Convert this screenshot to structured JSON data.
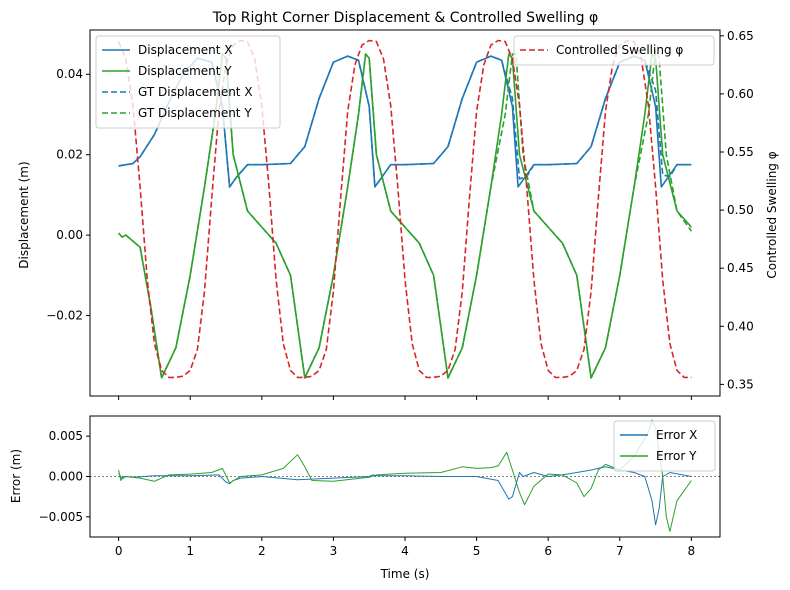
{
  "chart_data": [
    {
      "type": "line",
      "title": "Top Right Corner Displacement & Controlled Swelling φ",
      "xlabel": "",
      "ylabel": "Displacement (m)",
      "ylabel_right": "Controlled Swelling φ",
      "xlim": [
        -0.4,
        8.4
      ],
      "ylim": [
        -0.04,
        0.051
      ],
      "ylim_right": [
        0.34,
        0.655
      ],
      "xticks": [
        0,
        1,
        2,
        3,
        4,
        5,
        6,
        7,
        8
      ],
      "xtick_labels": [
        "",
        "",
        "",
        "",
        "",
        "",
        "",
        "",
        ""
      ],
      "yticks": [
        -0.02,
        0.0,
        0.02,
        0.04
      ],
      "ytick_labels": [
        "−0.02",
        "0.00",
        "0.02",
        "0.04"
      ],
      "yticks_right": [
        0.35,
        0.4,
        0.45,
        0.5,
        0.55,
        0.6,
        0.65
      ],
      "ytick_labels_right": [
        "0.35",
        "0.40",
        "0.45",
        "0.50",
        "0.55",
        "0.60",
        "0.65"
      ],
      "grid": false,
      "legend_left": {
        "placement": "upper-left",
        "entries": [
          "Displacement X",
          "Displacement Y",
          "GT Displacement X",
          "GT Displacement Y"
        ]
      },
      "legend_right": {
        "placement": "upper-right",
        "entries": [
          "Controlled Swelling φ"
        ]
      },
      "series": [
        {
          "name": "Displacement X",
          "axis": "left",
          "color": "#1f77b4",
          "dash": "solid",
          "x": [
            0,
            0.2,
            0.3,
            0.5,
            0.7,
            0.9,
            1.1,
            1.3,
            1.45,
            1.55,
            1.65,
            1.8,
            2.0,
            2.4,
            2.6,
            2.8,
            3.0,
            3.2,
            3.35,
            3.5,
            3.58,
            3.68,
            3.8,
            4.0,
            4.4,
            4.6,
            4.8,
            5.0,
            5.2,
            5.35,
            5.5,
            5.58,
            5.68,
            5.8,
            6.0,
            6.4,
            6.6,
            6.8,
            7.0,
            7.2,
            7.35,
            7.5,
            7.58,
            7.68,
            7.8,
            8.0
          ],
          "y": [
            0.0172,
            0.0178,
            0.0195,
            0.025,
            0.033,
            0.04,
            0.044,
            0.043,
            0.032,
            0.012,
            0.0145,
            0.0175,
            0.0175,
            0.0178,
            0.022,
            0.034,
            0.043,
            0.0445,
            0.0435,
            0.032,
            0.012,
            0.0145,
            0.0175,
            0.0175,
            0.0178,
            0.022,
            0.034,
            0.043,
            0.0445,
            0.0435,
            0.032,
            0.012,
            0.0145,
            0.0175,
            0.0175,
            0.0178,
            0.022,
            0.034,
            0.043,
            0.0445,
            0.0435,
            0.032,
            0.012,
            0.0145,
            0.0175,
            0.0175
          ]
        },
        {
          "name": "Displacement Y",
          "axis": "left",
          "color": "#2ca02c",
          "dash": "solid",
          "x": [
            0,
            0.05,
            0.1,
            0.3,
            0.45,
            0.6,
            0.8,
            1.0,
            1.2,
            1.35,
            1.45,
            1.5,
            1.6,
            1.8,
            2.0,
            2.2,
            2.4,
            2.6,
            2.8,
            3.0,
            3.2,
            3.35,
            3.45,
            3.5,
            3.6,
            3.8,
            4.0,
            4.2,
            4.4,
            4.6,
            4.8,
            5.0,
            5.2,
            5.35,
            5.45,
            5.5,
            5.6,
            5.8,
            6.0,
            6.2,
            6.4,
            6.6,
            6.8,
            7.0,
            7.2,
            7.35,
            7.45,
            7.5,
            7.6,
            7.8,
            8.0
          ],
          "y": [
            0.0005,
            -0.0005,
            0.0,
            -0.003,
            -0.018,
            -0.0355,
            -0.028,
            -0.01,
            0.012,
            0.03,
            0.045,
            0.044,
            0.02,
            0.006,
            0.002,
            -0.002,
            -0.01,
            -0.0355,
            -0.028,
            -0.01,
            0.012,
            0.03,
            0.045,
            0.044,
            0.02,
            0.006,
            0.002,
            -0.002,
            -0.01,
            -0.0355,
            -0.028,
            -0.01,
            0.012,
            0.03,
            0.045,
            0.044,
            0.02,
            0.006,
            0.002,
            -0.002,
            -0.01,
            -0.0355,
            -0.028,
            -0.01,
            0.012,
            0.03,
            0.045,
            0.044,
            0.02,
            0.006,
            0.002
          ]
        },
        {
          "name": "GT Displacement X",
          "axis": "left",
          "color": "#1f77b4",
          "dash": "dashed",
          "x": [
            0,
            0.2,
            0.3,
            0.5,
            0.7,
            0.9,
            1.1,
            1.3,
            1.45,
            1.55,
            1.65,
            1.8,
            2.0,
            2.4,
            2.6,
            2.8,
            3.0,
            3.2,
            3.35,
            3.5,
            3.58,
            3.68,
            3.8,
            4.0,
            4.4,
            4.6,
            4.8,
            5.0,
            5.2,
            5.35,
            5.5,
            5.6,
            5.7,
            5.8,
            6.0,
            6.4,
            6.6,
            6.8,
            7.0,
            7.2,
            7.35,
            7.5,
            7.6,
            7.7,
            7.8,
            8.0
          ],
          "y": [
            0.0172,
            0.0178,
            0.0195,
            0.025,
            0.033,
            0.04,
            0.044,
            0.043,
            0.032,
            0.012,
            0.0145,
            0.0175,
            0.0175,
            0.0178,
            0.022,
            0.034,
            0.043,
            0.0445,
            0.0435,
            0.032,
            0.012,
            0.0145,
            0.0175,
            0.0175,
            0.0178,
            0.022,
            0.034,
            0.043,
            0.0445,
            0.0435,
            0.034,
            0.014,
            0.0145,
            0.0175,
            0.0175,
            0.0178,
            0.022,
            0.034,
            0.043,
            0.0445,
            0.0435,
            0.036,
            0.015,
            0.0145,
            0.0175,
            0.0175
          ]
        },
        {
          "name": "GT Displacement Y",
          "axis": "left",
          "color": "#2ca02c",
          "dash": "dashed",
          "x": [
            0,
            0.05,
            0.1,
            0.3,
            0.45,
            0.6,
            0.8,
            1.0,
            1.2,
            1.35,
            1.45,
            1.5,
            1.6,
            1.8,
            2.0,
            2.2,
            2.4,
            2.6,
            2.8,
            3.0,
            3.2,
            3.35,
            3.45,
            3.5,
            3.6,
            3.8,
            4.0,
            4.2,
            4.4,
            4.6,
            4.8,
            5.0,
            5.2,
            5.4,
            5.5,
            5.55,
            5.65,
            5.8,
            6.0,
            6.2,
            6.4,
            6.6,
            6.8,
            7.0,
            7.2,
            7.4,
            7.5,
            7.55,
            7.65,
            7.8,
            8.0
          ],
          "y": [
            0.0005,
            -0.0005,
            0.0,
            -0.003,
            -0.018,
            -0.0355,
            -0.028,
            -0.01,
            0.012,
            0.03,
            0.045,
            0.044,
            0.02,
            0.006,
            0.002,
            -0.002,
            -0.01,
            -0.0355,
            -0.028,
            -0.01,
            0.012,
            0.03,
            0.045,
            0.044,
            0.02,
            0.006,
            0.002,
            -0.002,
            -0.01,
            -0.0355,
            -0.028,
            -0.01,
            0.012,
            0.03,
            0.045,
            0.045,
            0.02,
            0.006,
            0.002,
            -0.002,
            -0.01,
            -0.0355,
            -0.028,
            -0.01,
            0.012,
            0.03,
            0.046,
            0.044,
            0.02,
            0.006,
            0.001
          ]
        },
        {
          "name": "Controlled Swelling φ",
          "axis": "right",
          "color": "#d62728",
          "dash": "dashed",
          "x": [
            0,
            0.1,
            0.2,
            0.3,
            0.4,
            0.5,
            0.6,
            0.7,
            0.8,
            0.9,
            1.0,
            1.1,
            1.2,
            1.3,
            1.4,
            1.5,
            1.6,
            1.7,
            1.8,
            1.9,
            2.0,
            2.1,
            2.2,
            2.3,
            2.4,
            2.5,
            2.6,
            2.7,
            2.8,
            2.9,
            3.0,
            3.1,
            3.2,
            3.3,
            3.4,
            3.5,
            3.6,
            3.7,
            3.8,
            3.9,
            4.0,
            4.1,
            4.2,
            4.3,
            4.4,
            4.5,
            4.6,
            4.7,
            4.8,
            4.9,
            5.0,
            5.1,
            5.2,
            5.3,
            5.4,
            5.5,
            5.6,
            5.7,
            5.8,
            5.9,
            6.0,
            6.1,
            6.2,
            6.3,
            6.4,
            6.5,
            6.6,
            6.7,
            6.8,
            6.9,
            7.0,
            7.1,
            7.2,
            7.3,
            7.4,
            7.5,
            7.6,
            7.7,
            7.8,
            7.9,
            8.0
          ],
          "y": [
            0.645,
            0.63,
            0.59,
            0.52,
            0.44,
            0.385,
            0.362,
            0.356,
            0.356,
            0.357,
            0.362,
            0.38,
            0.43,
            0.51,
            0.585,
            0.625,
            0.642,
            0.646,
            0.645,
            0.63,
            0.59,
            0.52,
            0.44,
            0.385,
            0.362,
            0.356,
            0.356,
            0.357,
            0.362,
            0.38,
            0.43,
            0.51,
            0.585,
            0.625,
            0.642,
            0.646,
            0.645,
            0.63,
            0.59,
            0.52,
            0.44,
            0.385,
            0.362,
            0.356,
            0.356,
            0.357,
            0.362,
            0.38,
            0.43,
            0.51,
            0.585,
            0.625,
            0.642,
            0.646,
            0.645,
            0.63,
            0.59,
            0.52,
            0.44,
            0.385,
            0.362,
            0.356,
            0.356,
            0.357,
            0.362,
            0.38,
            0.43,
            0.51,
            0.585,
            0.625,
            0.642,
            0.646,
            0.645,
            0.63,
            0.59,
            0.52,
            0.44,
            0.385,
            0.362,
            0.356,
            0.356
          ]
        }
      ]
    },
    {
      "type": "line",
      "title": "",
      "xlabel": "Time (s)",
      "ylabel": "Error (m)",
      "xlim": [
        -0.4,
        8.4
      ],
      "ylim": [
        -0.0075,
        0.0075
      ],
      "xticks": [
        0,
        1,
        2,
        3,
        4,
        5,
        6,
        7,
        8
      ],
      "xtick_labels": [
        "0",
        "1",
        "2",
        "3",
        "4",
        "5",
        "6",
        "7",
        "8"
      ],
      "yticks": [
        -0.005,
        0.0,
        0.005
      ],
      "ytick_labels": [
        "−0.005",
        "0.000",
        "0.005"
      ],
      "zero_line": true,
      "grid": false,
      "legend": {
        "placement": "upper-right",
        "entries": [
          "Error X",
          "Error Y"
        ]
      },
      "series": [
        {
          "name": "Error X",
          "color": "#1f77b4",
          "x": [
            0,
            0.05,
            0.1,
            0.2,
            0.5,
            1.0,
            1.4,
            1.5,
            1.55,
            1.6,
            1.7,
            2.0,
            2.5,
            3.0,
            3.5,
            3.55,
            3.6,
            4.0,
            4.5,
            5.0,
            5.3,
            5.45,
            5.5,
            5.55,
            5.6,
            5.65,
            5.8,
            6.0,
            6.2,
            6.4,
            6.6,
            6.8,
            7.0,
            7.2,
            7.35,
            7.45,
            7.5,
            7.55,
            7.6,
            7.7,
            8.0
          ],
          "y": [
            0.0004,
            -0.0003,
            0.0,
            -0.0001,
            0.0001,
            0.0001,
            0.0002,
            -0.0007,
            -0.0009,
            -0.0005,
            -0.0002,
            0.0,
            -0.0004,
            -0.0002,
            0.0,
            0.0002,
            0.0001,
            0.0001,
            0.0,
            0.0,
            -0.0005,
            -0.0028,
            -0.0025,
            -0.001,
            0.0005,
            0.0,
            0.0005,
            0.0,
            0.0002,
            0.0005,
            0.0008,
            0.0012,
            0.0008,
            0.0005,
            0.0,
            -0.003,
            -0.006,
            -0.004,
            0.0,
            0.0005,
            0.0
          ]
        },
        {
          "name": "Error Y",
          "color": "#2ca02c",
          "x": [
            0,
            0.03,
            0.06,
            0.1,
            0.3,
            0.5,
            0.7,
            1.0,
            1.3,
            1.45,
            1.55,
            1.7,
            2.0,
            2.3,
            2.5,
            2.6,
            2.7,
            3.0,
            3.5,
            3.6,
            4.0,
            4.5,
            4.8,
            5.0,
            5.2,
            5.3,
            5.42,
            5.5,
            5.6,
            5.67,
            5.8,
            6.0,
            6.2,
            6.4,
            6.5,
            6.6,
            6.7,
            6.8,
            7.0,
            7.2,
            7.3,
            7.4,
            7.45,
            7.5,
            7.6,
            7.65,
            7.7,
            7.8,
            8.0
          ],
          "y": [
            0.0008,
            -0.0005,
            0.0,
            0.0,
            -0.0002,
            -0.0006,
            0.0002,
            0.0003,
            0.0005,
            0.001,
            -0.0008,
            0.0,
            0.0002,
            0.001,
            0.0027,
            0.0012,
            -0.0005,
            -0.0006,
            -0.0001,
            0.0002,
            0.0004,
            0.0005,
            0.0012,
            0.001,
            0.0011,
            0.0013,
            0.003,
            0.0008,
            -0.002,
            -0.0035,
            -0.0012,
            0.0003,
            0.0002,
            -0.0008,
            -0.0025,
            -0.0015,
            0.0008,
            0.0015,
            0.0008,
            0.0025,
            0.004,
            0.0055,
            0.007,
            0.006,
            0.0,
            -0.005,
            -0.0068,
            -0.003,
            -0.0005
          ]
        }
      ]
    }
  ]
}
